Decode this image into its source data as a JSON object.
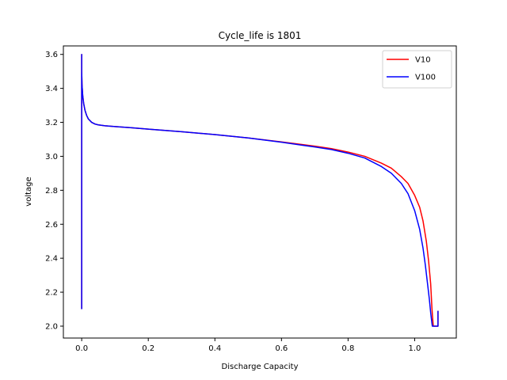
{
  "chart_data": {
    "type": "line",
    "title": "Cycle_life is 1801",
    "xlabel": "Discharge Capacity",
    "ylabel": "voltage",
    "xlim": [
      -0.055,
      1.125
    ],
    "ylim": [
      1.93,
      3.65
    ],
    "xticks": [
      0.0,
      0.2,
      0.4,
      0.6,
      0.8,
      1.0
    ],
    "xtick_labels": [
      "0.0",
      "0.2",
      "0.4",
      "0.6",
      "0.8",
      "1.0"
    ],
    "yticks": [
      2.0,
      2.2,
      2.4,
      2.6,
      2.8,
      3.0,
      3.2,
      3.4,
      3.6
    ],
    "ytick_labels": [
      "2.0",
      "2.2",
      "2.4",
      "2.6",
      "2.8",
      "3.0",
      "3.2",
      "3.4",
      "3.6"
    ],
    "grid": false,
    "legend_position": "top-right",
    "series": [
      {
        "name": "V10",
        "color": "#ff0000",
        "x": [
          0.0,
          0.0,
          0.0,
          0.001,
          0.003,
          0.006,
          0.01,
          0.015,
          0.02,
          0.03,
          0.04,
          0.05,
          0.07,
          0.1,
          0.15,
          0.2,
          0.3,
          0.4,
          0.5,
          0.6,
          0.7,
          0.75,
          0.8,
          0.85,
          0.9,
          0.93,
          0.96,
          0.98,
          1.0,
          1.015,
          1.025,
          1.035,
          1.042,
          1.048,
          1.052,
          1.055,
          1.056,
          1.057,
          1.065,
          1.07,
          1.07
        ],
        "y": [
          2.1,
          3.6,
          3.5,
          3.42,
          3.36,
          3.31,
          3.27,
          3.24,
          3.22,
          3.2,
          3.19,
          3.185,
          3.18,
          3.175,
          3.168,
          3.16,
          3.145,
          3.128,
          3.108,
          3.085,
          3.06,
          3.045,
          3.025,
          3.0,
          2.96,
          2.93,
          2.88,
          2.84,
          2.77,
          2.7,
          2.62,
          2.5,
          2.38,
          2.25,
          2.1,
          2.02,
          2.0,
          2.0,
          2.0,
          2.0,
          2.09
        ]
      },
      {
        "name": "V100",
        "color": "#0000ff",
        "x": [
          0.0,
          0.0,
          0.0,
          0.001,
          0.003,
          0.006,
          0.01,
          0.015,
          0.02,
          0.03,
          0.04,
          0.05,
          0.07,
          0.1,
          0.15,
          0.2,
          0.3,
          0.4,
          0.5,
          0.6,
          0.7,
          0.75,
          0.8,
          0.85,
          0.9,
          0.93,
          0.96,
          0.98,
          1.0,
          1.015,
          1.025,
          1.032,
          1.038,
          1.044,
          1.048,
          1.051,
          1.053,
          1.055,
          1.065,
          1.07,
          1.07
        ],
        "y": [
          2.1,
          3.6,
          3.5,
          3.42,
          3.36,
          3.31,
          3.27,
          3.24,
          3.22,
          3.2,
          3.19,
          3.185,
          3.18,
          3.175,
          3.168,
          3.16,
          3.145,
          3.128,
          3.108,
          3.083,
          3.055,
          3.04,
          3.018,
          2.99,
          2.94,
          2.9,
          2.84,
          2.78,
          2.68,
          2.57,
          2.46,
          2.36,
          2.26,
          2.16,
          2.08,
          2.03,
          2.0,
          2.0,
          2.0,
          2.0,
          2.09
        ]
      }
    ]
  }
}
